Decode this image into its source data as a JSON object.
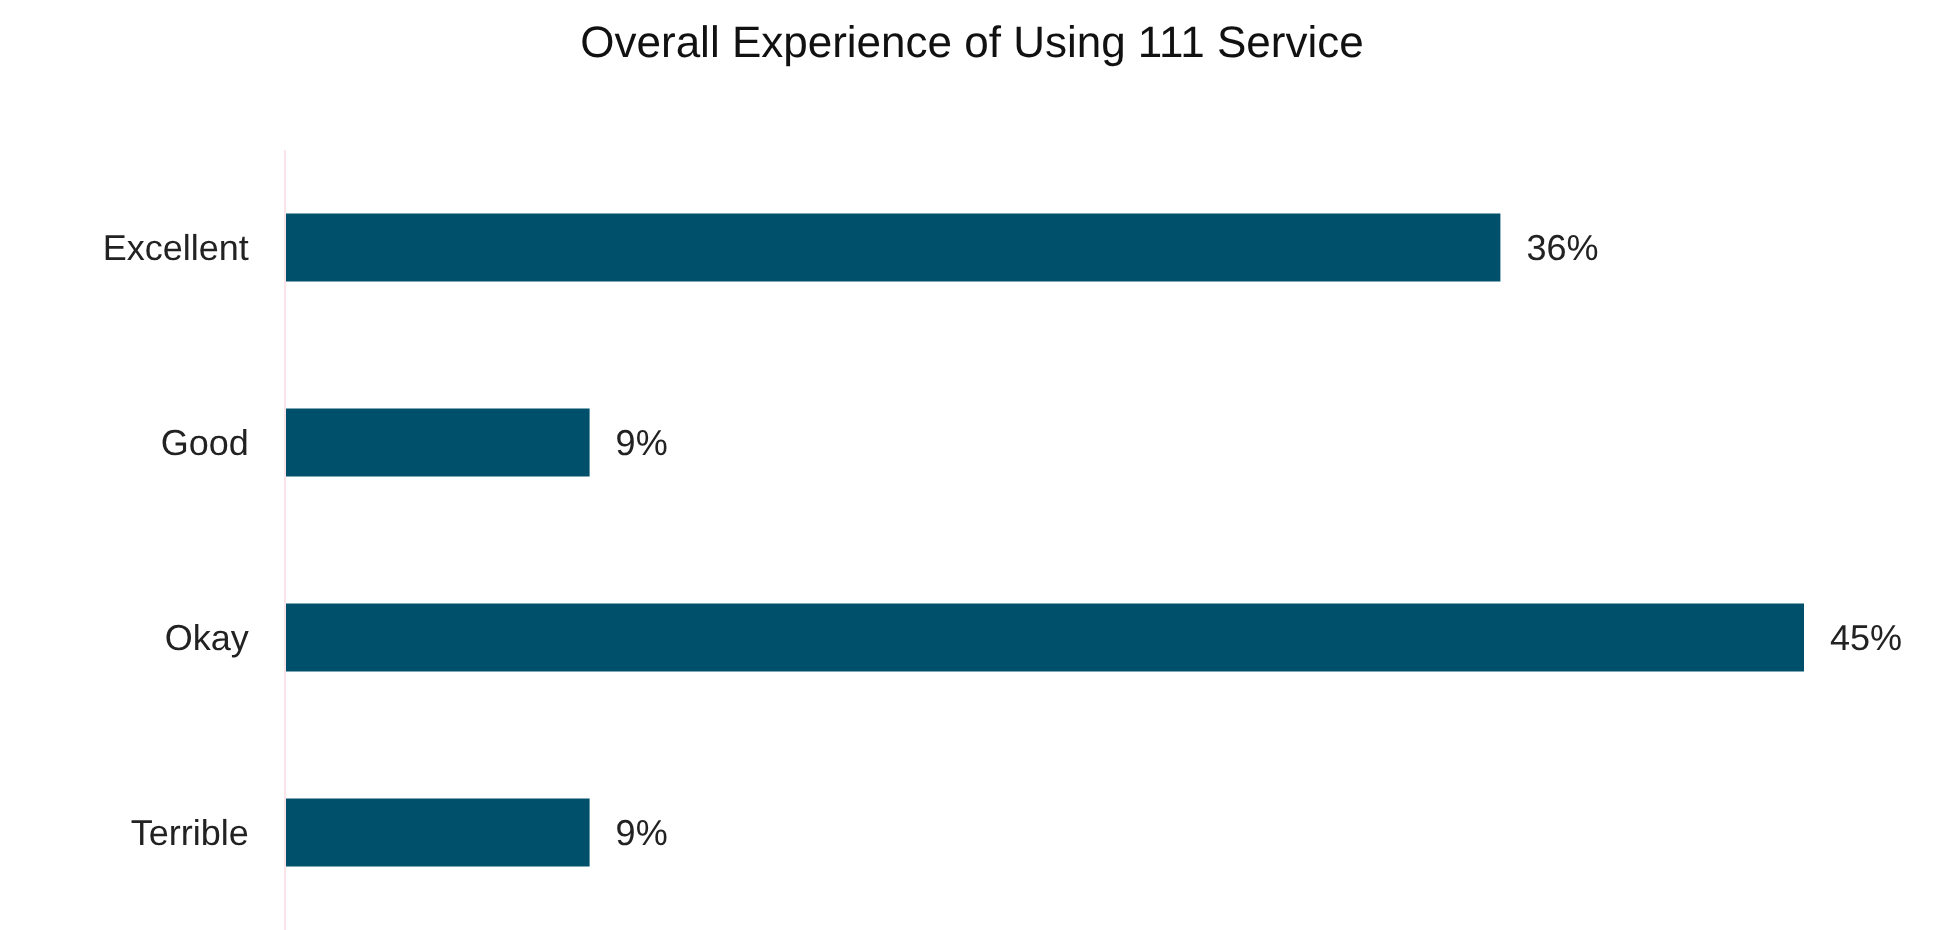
{
  "chart_data": {
    "type": "bar",
    "title": "Overall Experience of Using 111 Service",
    "orientation": "horizontal",
    "categories": [
      "Excellent",
      "Good",
      "Okay",
      "Terrible"
    ],
    "values": [
      36,
      9,
      45,
      9
    ],
    "value_labels": [
      "36%",
      "9%",
      "45%",
      "9%"
    ],
    "color": "#00506b"
  }
}
